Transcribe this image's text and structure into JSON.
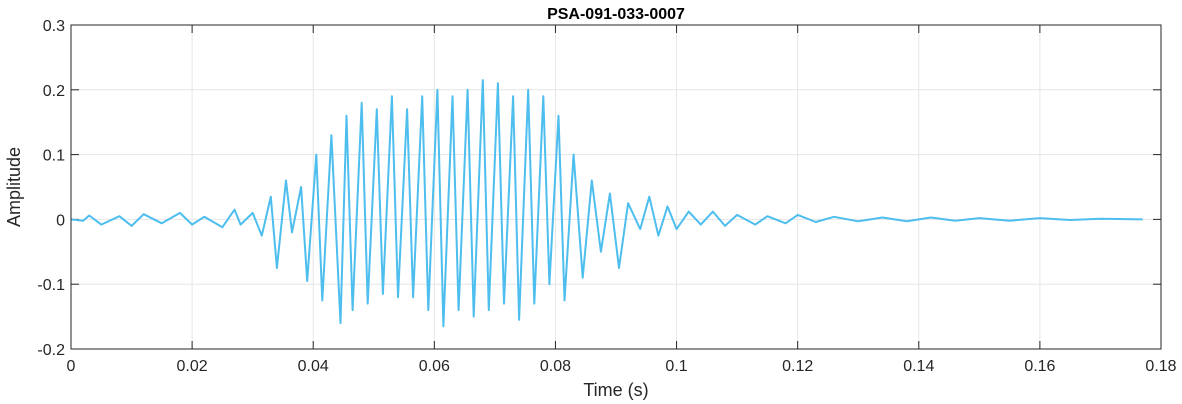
{
  "chart_data": {
    "type": "line",
    "title": "PSA-091-033-0007",
    "xlabel": "Time (s)",
    "ylabel": "Amplitude",
    "xlim": [
      0,
      0.18
    ],
    "ylim": [
      -0.2,
      0.3
    ],
    "grid": true,
    "x_ticks": [
      0,
      0.02,
      0.04,
      0.06,
      0.08,
      0.1,
      0.12,
      0.14,
      0.16,
      0.18
    ],
    "x_tick_labels": [
      "0",
      "0.02",
      "0.04",
      "0.06",
      "0.08",
      "0.1",
      "0.12",
      "0.14",
      "0.16",
      "0.18"
    ],
    "y_ticks": [
      -0.2,
      -0.1,
      0,
      0.1,
      0.2,
      0.3
    ],
    "y_tick_labels": [
      "-0.2",
      "-0.1",
      "0",
      "0.1",
      "0.2",
      "0.3"
    ],
    "series": [
      {
        "color": "#4DBEEE",
        "x": [
          0,
          0.002,
          0.003,
          0.005,
          0.008,
          0.01,
          0.012,
          0.015,
          0.018,
          0.02,
          0.022,
          0.025,
          0.027,
          0.028,
          0.03,
          0.0315,
          0.033,
          0.034,
          0.0355,
          0.0365,
          0.038,
          0.039,
          0.0405,
          0.0415,
          0.043,
          0.0445,
          0.0455,
          0.0465,
          0.048,
          0.049,
          0.0505,
          0.0515,
          0.053,
          0.054,
          0.0555,
          0.0565,
          0.058,
          0.059,
          0.0605,
          0.0615,
          0.063,
          0.064,
          0.0655,
          0.0665,
          0.068,
          0.069,
          0.0705,
          0.0715,
          0.073,
          0.074,
          0.0755,
          0.0765,
          0.078,
          0.079,
          0.0805,
          0.0815,
          0.083,
          0.0845,
          0.086,
          0.0875,
          0.089,
          0.0905,
          0.092,
          0.094,
          0.0955,
          0.097,
          0.0985,
          0.1,
          0.102,
          0.104,
          0.106,
          0.108,
          0.11,
          0.113,
          0.115,
          0.118,
          0.12,
          0.123,
          0.126,
          0.13,
          0.134,
          0.138,
          0.142,
          0.146,
          0.15,
          0.155,
          0.16,
          0.165,
          0.17,
          0.177
        ],
        "y": [
          0,
          -0.002,
          0.006,
          -0.008,
          0.005,
          -0.01,
          0.008,
          -0.006,
          0.01,
          -0.008,
          0.004,
          -0.012,
          0.015,
          -0.008,
          0.01,
          -0.025,
          0.035,
          -0.075,
          0.06,
          -0.02,
          0.05,
          -0.095,
          0.1,
          -0.125,
          0.13,
          -0.16,
          0.16,
          -0.14,
          0.18,
          -0.13,
          0.17,
          -0.115,
          0.19,
          -0.12,
          0.17,
          -0.12,
          0.19,
          -0.14,
          0.2,
          -0.165,
          0.19,
          -0.14,
          0.2,
          -0.15,
          0.215,
          -0.14,
          0.21,
          -0.13,
          0.19,
          -0.155,
          0.2,
          -0.13,
          0.19,
          -0.1,
          0.16,
          -0.125,
          0.1,
          -0.09,
          0.06,
          -0.05,
          0.04,
          -0.075,
          0.025,
          -0.015,
          0.035,
          -0.025,
          0.02,
          -0.015,
          0.012,
          -0.008,
          0.012,
          -0.01,
          0.007,
          -0.008,
          0.005,
          -0.006,
          0.007,
          -0.004,
          0.004,
          -0.003,
          0.003,
          -0.003,
          0.003,
          -0.002,
          0.002,
          -0.002,
          0.002,
          -0.001,
          0.001,
          0
        ]
      }
    ]
  }
}
